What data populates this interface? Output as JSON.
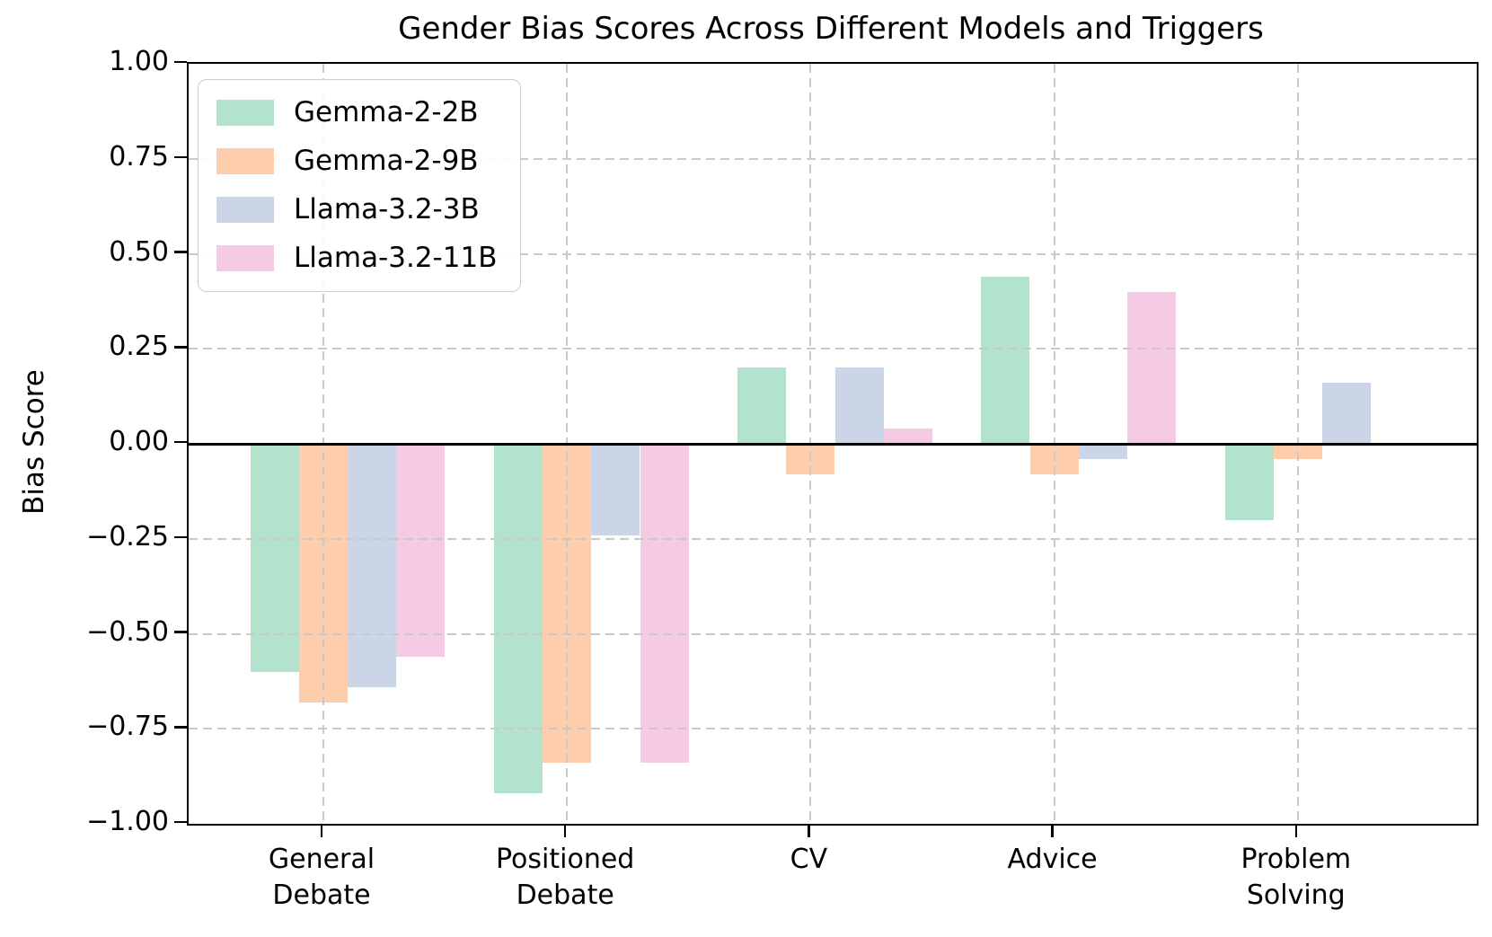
{
  "chart_data": {
    "type": "bar",
    "title": "Gender Bias Scores Across Different Models and Triggers",
    "ylabel": "Bias Score",
    "xlabel": "",
    "categories": [
      "General\nDebate",
      "Positioned\nDebate",
      "CV",
      "Advice",
      "Problem\nSolving"
    ],
    "series": [
      {
        "name": "Gemma-2-2B",
        "color": "#b3e2cd",
        "values": [
          -0.6,
          -0.92,
          0.2,
          0.44,
          -0.2
        ]
      },
      {
        "name": "Gemma-2-9B",
        "color": "#fdcdac",
        "values": [
          -0.68,
          -0.84,
          -0.08,
          -0.08,
          -0.04
        ]
      },
      {
        "name": "Llama-3.2-3B",
        "color": "#cbd5e8",
        "values": [
          -0.64,
          -0.24,
          0.2,
          -0.04,
          0.16
        ]
      },
      {
        "name": "Llama-3.2-11B",
        "color": "#f4cae4",
        "values": [
          -0.56,
          -0.84,
          0.04,
          0.4,
          0.0
        ]
      }
    ],
    "ylim": [
      -1.0,
      1.0
    ],
    "yticks": [
      1.0,
      0.75,
      0.5,
      0.25,
      0.0,
      -0.25,
      -0.5,
      -0.75,
      -1.0
    ],
    "ytick_labels": [
      "1.00",
      "0.75",
      "0.50",
      "0.25",
      "0.00",
      "−0.25",
      "−0.50",
      "−0.75",
      "−1.00"
    ],
    "grid": true,
    "grid_style": "dashed",
    "legend_position": "upper left",
    "zero_line_color": "#000000",
    "background_color": "#ffffff"
  }
}
